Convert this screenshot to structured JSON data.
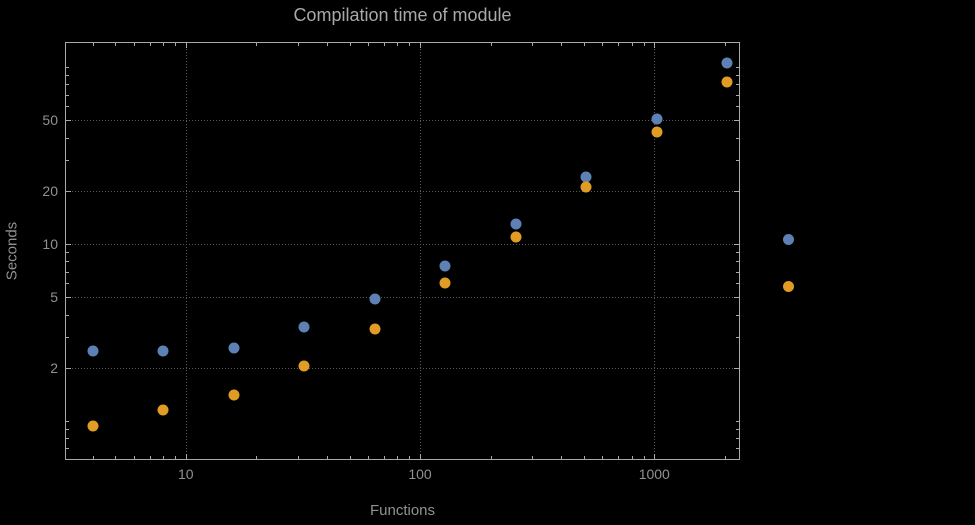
{
  "chart_data": {
    "type": "scatter",
    "title": "Compilation time of module",
    "xlabel": "Functions",
    "ylabel": "Seconds",
    "x_scale": "log",
    "y_scale": "log",
    "x_range": [
      3.08,
      2300
    ],
    "y_range": [
      0.61,
      137
    ],
    "x_ticks": [
      10,
      100,
      1000
    ],
    "y_ticks": [
      2,
      5,
      10,
      20,
      50
    ],
    "grid": "dotted major gridlines",
    "legend_position": "right-outside, markers only (no visible labels)",
    "colors": {
      "background": "#000000",
      "frame": "#a9a9a9",
      "grid": "#5a5a5a",
      "text": "#919191",
      "title": "#a9a9a9"
    },
    "series": [
      {
        "name": "series-blue",
        "color": "#5e81b5",
        "x": [
          4,
          8,
          16,
          32,
          64,
          128,
          256,
          512,
          1024,
          2048
        ],
        "y": [
          2.5,
          2.5,
          2.6,
          3.4,
          4.9,
          7.5,
          13,
          24,
          51,
          105
        ]
      },
      {
        "name": "series-orange",
        "color": "#e19c24",
        "x": [
          4,
          8,
          16,
          32,
          64,
          128,
          256,
          512,
          1024,
          2048
        ],
        "y": [
          0.94,
          1.15,
          1.4,
          2.05,
          3.3,
          6.0,
          11,
          21,
          43,
          82
        ]
      }
    ],
    "legend": {
      "markers": [
        {
          "series": "series-blue",
          "color": "#5e81b5"
        },
        {
          "series": "series-orange",
          "color": "#e19c24"
        }
      ]
    }
  }
}
